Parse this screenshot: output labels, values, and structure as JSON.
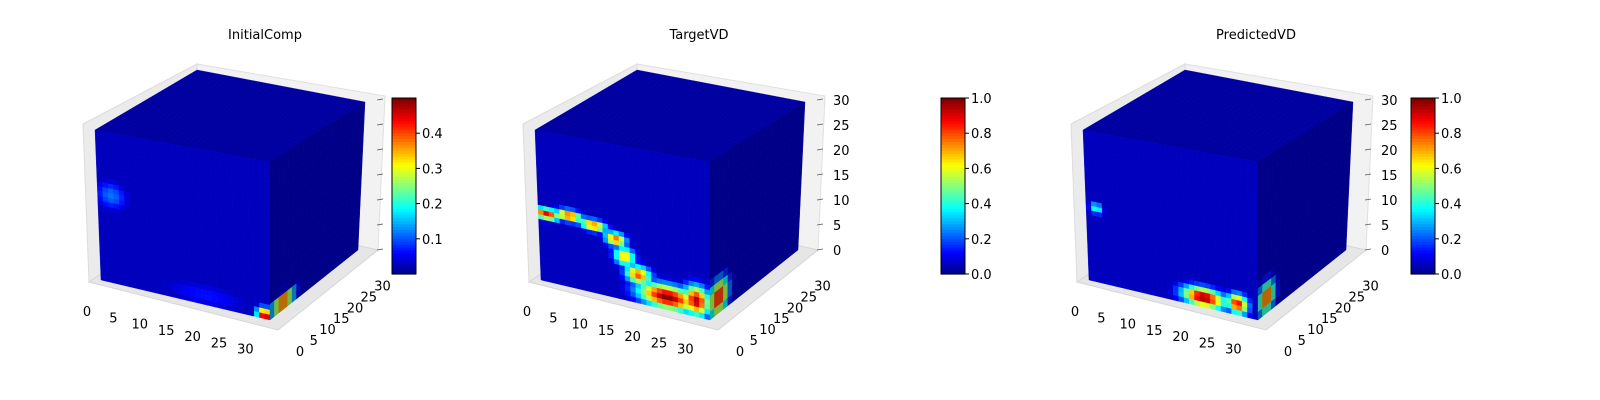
{
  "chart_data": [
    {
      "type": "heatmap",
      "title": "InitialComp",
      "x_ticks": [
        "0",
        "5",
        "10",
        "15",
        "20",
        "25",
        "30"
      ],
      "y_ticks": [
        "0",
        "5",
        "10",
        "15",
        "20",
        "25",
        "30"
      ],
      "z_ticks": [
        "",
        "",
        "",
        "",
        "",
        "",
        ""
      ],
      "xlim": [
        0,
        32
      ],
      "ylim": [
        0,
        32
      ],
      "zlim": [
        0,
        32
      ],
      "colorbar": {
        "min": 0.0,
        "max": 0.5,
        "ticks": [
          "0.1",
          "0.2",
          "0.3",
          "0.4"
        ],
        "tick_values": [
          0.1,
          0.2,
          0.3,
          0.4
        ]
      },
      "colormap": "jet",
      "front_hotspots": [
        {
          "u": 0.08,
          "v": 0.58,
          "ru": 0.12,
          "rv": 0.12,
          "value": 0.12
        },
        {
          "u": 0.62,
          "v": 0.06,
          "ru": 0.35,
          "rv": 0.1,
          "value": 0.07
        },
        {
          "u": 0.97,
          "v": 0.02,
          "ru": 0.06,
          "rv": 0.06,
          "value": 0.5
        }
      ],
      "side_hotspots": [
        {
          "u": 0.15,
          "v": 0.05,
          "ru": 0.16,
          "rv": 0.06,
          "value": 0.5
        }
      ]
    },
    {
      "type": "heatmap",
      "title": "TargetVD",
      "x_ticks": [
        "0",
        "5",
        "10",
        "15",
        "20",
        "25",
        "30"
      ],
      "y_ticks": [
        "0",
        "5",
        "10",
        "15",
        "20",
        "25",
        "30"
      ],
      "z_ticks": [
        "0",
        "5",
        "10",
        "15",
        "20",
        "25",
        "30"
      ],
      "xlim": [
        0,
        32
      ],
      "ylim": [
        0,
        32
      ],
      "zlim": [
        0,
        32
      ],
      "colorbar": {
        "min": 0.0,
        "max": 1.0,
        "ticks": [
          "0.0",
          "0.2",
          "0.4",
          "0.6",
          "0.8",
          "1.0"
        ],
        "tick_values": [
          0,
          0.2,
          0.4,
          0.6,
          0.8,
          1.0
        ]
      },
      "colormap": "jet",
      "front_hotspots": [
        {
          "u": 0.05,
          "v": 0.45,
          "ru": 0.1,
          "rv": 0.05,
          "value": 0.9
        },
        {
          "u": 0.18,
          "v": 0.47,
          "ru": 0.1,
          "rv": 0.05,
          "value": 0.85
        },
        {
          "u": 0.32,
          "v": 0.44,
          "ru": 0.1,
          "rv": 0.05,
          "value": 0.8
        },
        {
          "u": 0.45,
          "v": 0.38,
          "ru": 0.08,
          "rv": 0.06,
          "value": 0.8
        },
        {
          "u": 0.5,
          "v": 0.28,
          "ru": 0.08,
          "rv": 0.08,
          "value": 0.7
        },
        {
          "u": 0.58,
          "v": 0.18,
          "ru": 0.1,
          "rv": 0.08,
          "value": 0.8
        },
        {
          "u": 0.75,
          "v": 0.08,
          "ru": 0.22,
          "rv": 0.1,
          "value": 1.0
        },
        {
          "u": 0.92,
          "v": 0.1,
          "ru": 0.1,
          "rv": 0.12,
          "value": 0.95
        }
      ],
      "side_hotspots": [
        {
          "u": 0.1,
          "v": 0.1,
          "ru": 0.14,
          "rv": 0.14,
          "value": 0.9
        }
      ]
    },
    {
      "type": "heatmap",
      "title": "PredictedVD",
      "x_ticks": [
        "0",
        "5",
        "10",
        "15",
        "20",
        "25",
        "30"
      ],
      "y_ticks": [
        "0",
        "5",
        "10",
        "15",
        "20",
        "25",
        "30"
      ],
      "z_ticks": [
        "0",
        "5",
        "10",
        "15",
        "20",
        "25",
        "30"
      ],
      "xlim": [
        0,
        32
      ],
      "ylim": [
        0,
        32
      ],
      "zlim": [
        0,
        32
      ],
      "colorbar": {
        "min": 0.0,
        "max": 1.0,
        "ticks": [
          "0.0",
          "0.2",
          "0.4",
          "0.6",
          "0.8",
          "1.0"
        ],
        "tick_values": [
          0,
          0.2,
          0.4,
          0.6,
          0.8,
          1.0
        ]
      },
      "colormap": "jet",
      "front_hotspots": [
        {
          "u": 0.06,
          "v": 0.49,
          "ru": 0.05,
          "rv": 0.05,
          "value": 0.45
        },
        {
          "u": 0.68,
          "v": 0.06,
          "ru": 0.16,
          "rv": 0.08,
          "value": 1.0
        },
        {
          "u": 0.88,
          "v": 0.07,
          "ru": 0.08,
          "rv": 0.08,
          "value": 0.9
        }
      ],
      "side_hotspots": [
        {
          "u": 0.1,
          "v": 0.1,
          "ru": 0.12,
          "rv": 0.12,
          "value": 0.85
        }
      ]
    }
  ]
}
